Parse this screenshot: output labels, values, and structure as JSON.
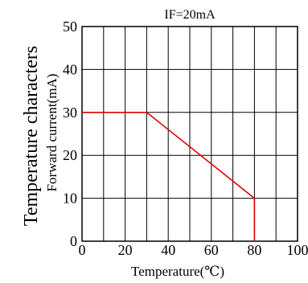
{
  "chart_data": {
    "type": "line",
    "title": "IF=20mA",
    "side_title": "Temperature characters",
    "xlabel": "Temperature(℃)",
    "ylabel": "Forward current(mA)",
    "xlim": [
      0,
      100
    ],
    "ylim": [
      0,
      50
    ],
    "x_tick_labels": [
      "0",
      "20",
      "40",
      "60",
      "80",
      "100"
    ],
    "y_tick_labels": [
      "0",
      "10",
      "20",
      "30",
      "40",
      "50"
    ],
    "grid": true,
    "series": [
      {
        "color": "#e00000",
        "x": [
          0,
          30,
          80,
          80
        ],
        "y": [
          30,
          30,
          10,
          0
        ]
      }
    ]
  }
}
